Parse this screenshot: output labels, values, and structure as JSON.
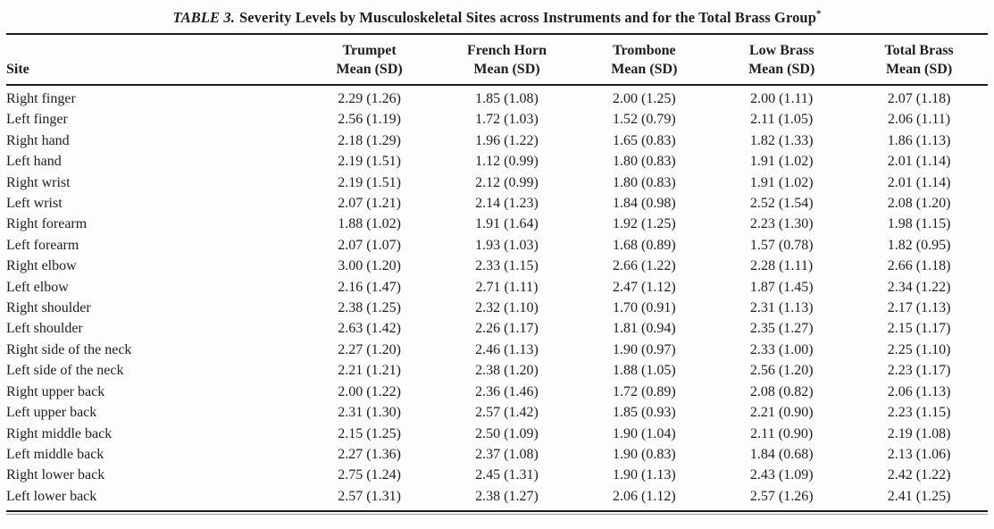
{
  "colors": {
    "text": "#1e1e1e",
    "rule": "#1b1b1b",
    "background": "#fdfdfd"
  },
  "table": {
    "title_label": "TABLE 3.",
    "title_text": "Severity Levels by Musculoskeletal Sites across Instruments and for the Total Brass Group",
    "title_footnote_marker": "*",
    "columns": [
      {
        "name": "Site",
        "sub": ""
      },
      {
        "name": "Trumpet",
        "sub": "Mean (SD)"
      },
      {
        "name": "French Horn",
        "sub": "Mean (SD)"
      },
      {
        "name": "Trombone",
        "sub": "Mean (SD)"
      },
      {
        "name": "Low Brass",
        "sub": "Mean (SD)"
      },
      {
        "name": "Total Brass",
        "sub": "Mean (SD)"
      }
    ],
    "rows": [
      {
        "site": "Right finger",
        "values": [
          "2.29 (1.26)",
          "1.85 (1.08)",
          "2.00 (1.25)",
          "2.00 (1.11)",
          "2.07 (1.18)"
        ]
      },
      {
        "site": "Left finger",
        "values": [
          "2.56 (1.19)",
          "1.72 (1.03)",
          "1.52 (0.79)",
          "2.11 (1.05)",
          "2.06 (1.11)"
        ]
      },
      {
        "site": "Right hand",
        "values": [
          "2.18 (1.29)",
          "1.96 (1.22)",
          "1.65 (0.83)",
          "1.82 (1.33)",
          "1.86 (1.13)"
        ]
      },
      {
        "site": "Left hand",
        "values": [
          "2.19 (1.51)",
          "1.12 (0.99)",
          "1.80 (0.83)",
          "1.91 (1.02)",
          "2.01 (1.14)"
        ]
      },
      {
        "site": "Right wrist",
        "values": [
          "2.19 (1.51)",
          "2.12 (0.99)",
          "1.80 (0.83)",
          "1.91 (1.02)",
          "2.01 (1.14)"
        ]
      },
      {
        "site": "Left wrist",
        "values": [
          "2.07 (1.21)",
          "2.14 (1.23)",
          "1.84 (0.98)",
          "2.52 (1.54)",
          "2.08 (1.20)"
        ]
      },
      {
        "site": "Right forearm",
        "values": [
          "1.88 (1.02)",
          "1.91 (1.64)",
          "1.92 (1.25)",
          "2.23 (1.30)",
          "1.98 (1.15)"
        ]
      },
      {
        "site": "Left forearm",
        "values": [
          "2.07 (1.07)",
          "1.93 (1.03)",
          "1.68 (0.89)",
          "1.57 (0.78)",
          "1.82 (0.95)"
        ]
      },
      {
        "site": "Right elbow",
        "values": [
          "3.00 (1.20)",
          "2.33 (1.15)",
          "2.66 (1.22)",
          "2.28 (1.11)",
          "2.66 (1.18)"
        ]
      },
      {
        "site": "Left elbow",
        "values": [
          "2.16 (1.47)",
          "2.71 (1.11)",
          "2.47 (1.12)",
          "1.87 (1.45)",
          "2.34 (1.22)"
        ]
      },
      {
        "site": "Right shoulder",
        "values": [
          "2.38 (1.25)",
          "2.32 (1.10)",
          "1.70 (0.91)",
          "2.31 (1.13)",
          "2.17 (1.13)"
        ]
      },
      {
        "site": "Left shoulder",
        "values": [
          "2.63 (1.42)",
          "2.26 (1.17)",
          "1.81 (0.94)",
          "2.35 (1.27)",
          "2.15 (1.17)"
        ]
      },
      {
        "site": "Right side of the neck",
        "values": [
          "2.27 (1.20)",
          "2.46 (1.13)",
          "1.90 (0.97)",
          "2.33 (1.00)",
          "2.25 (1.10)"
        ]
      },
      {
        "site": "Left side of the neck",
        "values": [
          "2.21 (1.21)",
          "2.38 (1.20)",
          "1.88 (1.05)",
          "2.56 (1.20)",
          "2.23 (1.17)"
        ]
      },
      {
        "site": "Right upper back",
        "values": [
          "2.00 (1.22)",
          "2.36 (1.46)",
          "1.72 (0.89)",
          "2.08 (0.82)",
          "2.06 (1.13)"
        ]
      },
      {
        "site": "Left upper back",
        "values": [
          "2.31 (1.30)",
          "2.57 (1.42)",
          "1.85 (0.93)",
          "2.21 (0.90)",
          "2.23 (1.15)"
        ]
      },
      {
        "site": "Right middle back",
        "values": [
          "2.15 (1.25)",
          "2.50 (1.09)",
          "1.90 (1.04)",
          "2.11 (0.90)",
          "2.19 (1.08)"
        ]
      },
      {
        "site": "Left middle back",
        "values": [
          "2.27 (1.36)",
          "2.37 (1.08)",
          "1.90 (0.83)",
          "1.84 (0.68)",
          "2.13 (1.06)"
        ]
      },
      {
        "site": "Right lower back",
        "values": [
          "2.75 (1.24)",
          "2.45 (1.31)",
          "1.90 (1.13)",
          "2.43 (1.09)",
          "2.42 (1.22)"
        ]
      },
      {
        "site": "Left lower back",
        "values": [
          "2.57 (1.31)",
          "2.38 (1.27)",
          "2.06 (1.12)",
          "2.57 (1.26)",
          "2.41 (1.25)"
        ]
      }
    ]
  }
}
